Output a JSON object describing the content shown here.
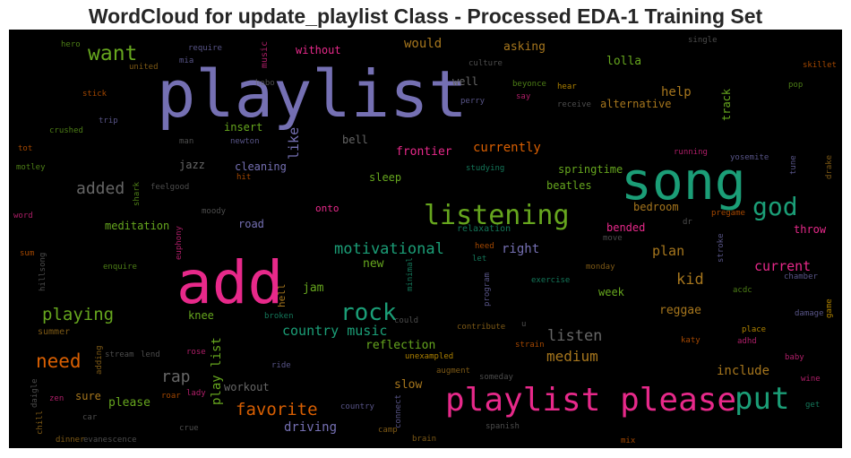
{
  "title": "WordCloud for update_playlist Class - Processed EDA-1 Training Set",
  "words": [
    "playlist",
    "song",
    "add",
    "playlist please",
    "put",
    "listening",
    "god",
    "rock",
    "want",
    "added",
    "motivational",
    "playing",
    "need",
    "country music",
    "listen",
    "rap",
    "favorite",
    "medium",
    "current",
    "kid",
    "plan",
    "currently",
    "would",
    "asking",
    "lolla",
    "help",
    "alternative",
    "track",
    "well",
    "frontier",
    "springtime",
    "beatles",
    "bedroom",
    "bended",
    "right",
    "new",
    "jam",
    "reggae",
    "week",
    "include",
    "reflection",
    "slow",
    "driving",
    "sure",
    "please",
    "workout",
    "play list",
    "like",
    "cleaning",
    "jazz",
    "insert",
    "bell",
    "sleep",
    "meditation",
    "road",
    "onto",
    "knee",
    "hell",
    "without",
    "music",
    "hobo",
    "mia",
    "require",
    "hero",
    "single",
    "skillet",
    "pop",
    "hear",
    "beyonce",
    "culture",
    "perry",
    "say",
    "receive",
    "united",
    "stick",
    "trip",
    "crushed",
    "man",
    "newton",
    "tot",
    "motley",
    "feelgood",
    "hit",
    "shark",
    "euphony",
    "moody",
    "word",
    "sum",
    "hillsong",
    "enquire",
    "relaxation",
    "heed",
    "let",
    "minimal",
    "program",
    "exercise",
    "monday",
    "move",
    "dr",
    "stroke",
    "pregame",
    "throw",
    "chamber",
    "acdc",
    "game",
    "damage",
    "place",
    "adhd",
    "katy",
    "baby",
    "wine",
    "get",
    "mix",
    "yosemite",
    "running",
    "tune",
    "drake",
    "studying",
    "could",
    "u",
    "contribute",
    "strain",
    "unexampled",
    "augment",
    "someday",
    "connect",
    "camp",
    "country",
    "spanish",
    "brain",
    "crue",
    "lady",
    "roar",
    "rose",
    "lend",
    "stream",
    "adding",
    "summer",
    "broken",
    "ride",
    "car",
    "zen",
    "daigle",
    "chill",
    "dinner",
    "evanescence"
  ]
}
